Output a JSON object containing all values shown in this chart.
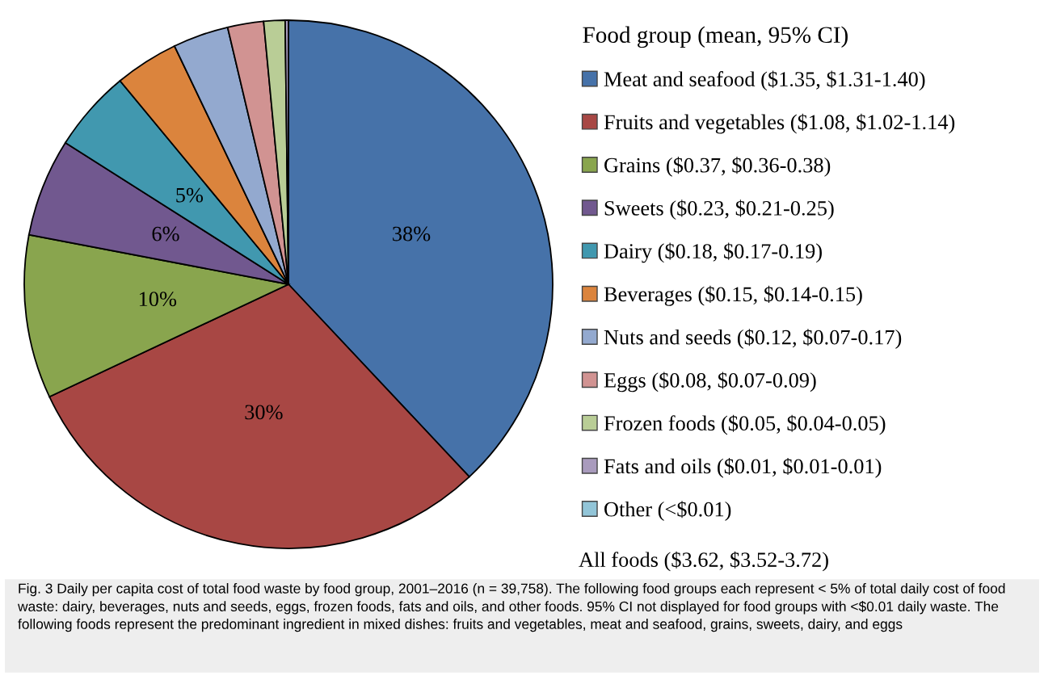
{
  "chart_data": {
    "type": "pie",
    "categories": [
      "Meat and seafood ($1.35, $1.31-1.40)",
      "Fruits and vegetables ($1.08, $1.02-1.14)",
      "Grains ($0.37, $0.36-0.38)",
      "Sweets ($0.23, $0.21-0.25)",
      "Dairy ($0.18, $0.17-0.19)",
      "Beverages ($0.15, $0.14-0.15)",
      "Nuts and seeds ($0.12, $0.07-0.17)",
      "Eggs ($0.08, $0.07-0.09)",
      "Frozen foods ($0.05, $0.04-0.05)",
      "Fats and oils ($0.01, $0.01-0.01)",
      "Other (<$0.01)"
    ],
    "values": [
      38,
      30,
      10,
      6,
      5,
      3.9,
      3.4,
      2.2,
      1.3,
      0.2,
      0
    ],
    "colors": [
      "#4672a9",
      "#a84744",
      "#89a54e",
      "#71588f",
      "#4198af",
      "#db843d",
      "#93a9cf",
      "#d19392",
      "#b9cd96",
      "#a99bbd",
      "#92c5d8"
    ],
    "value_labels": [
      "38%",
      "30%",
      "10%",
      "6%",
      "5%",
      null,
      null,
      null,
      null,
      null,
      null
    ],
    "legend_title": "Food group (mean, 95% CI)",
    "legend": "right",
    "annotations": [
      "All foods ($3.62, $3.52-3.72)",
      "Fig. 3 Daily per capita cost of total food waste by food group, 2001–2016 (n = 39,758). The following food groups each represent < 5% of total daily cost of food waste: dairy, beverages, nuts and seeds, eggs, frozen foods, fats and oils, and other foods. 95% CI not displayed for food groups with <$0.01 daily waste. The following foods represent the predominant ingredient in mixed dishes: fruits and vegetables, meat and seafood, grains, sweets, dairy, and eggs"
    ]
  }
}
